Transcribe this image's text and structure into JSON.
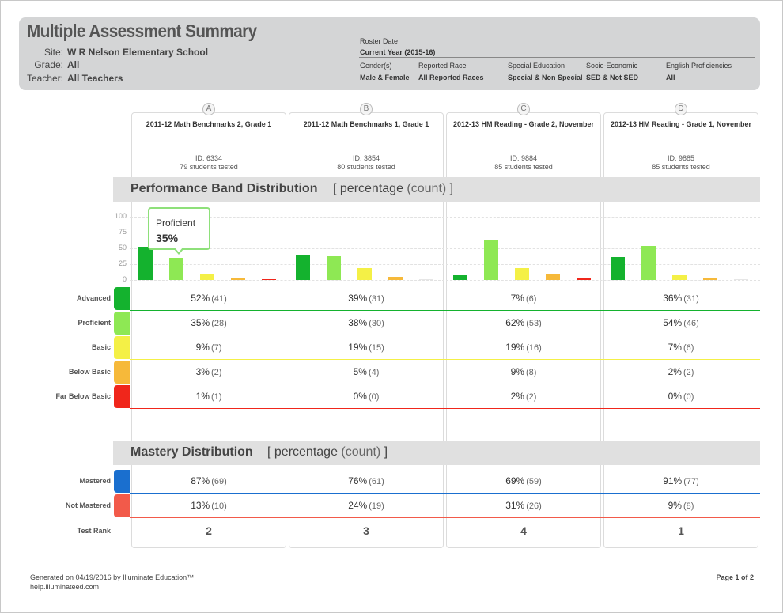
{
  "header": {
    "title": "Multiple Assessment Summary",
    "site_label": "Site:",
    "site_value": "W R Nelson Elementary School",
    "grade_label": "Grade:",
    "grade_value": "All",
    "teacher_label": "Teacher:",
    "teacher_value": "All Teachers",
    "roster_label": "Roster Date",
    "roster_value": "Current Year (2015-16)",
    "filters": [
      {
        "label": "Gender(s)",
        "value": "Male & Female"
      },
      {
        "label": "Reported Race",
        "value": "All Reported Races"
      },
      {
        "label": "Special Education",
        "value": "Special & Non Special"
      },
      {
        "label": "Socio-Economic",
        "value": "SED & Not SED"
      },
      {
        "label": "English Proficiencies",
        "value": "All"
      }
    ]
  },
  "assessments": [
    {
      "letter": "A",
      "title": "2011-12 Math Benchmarks 2, Grade 1",
      "id": "ID: 6334",
      "tested": "79 students tested"
    },
    {
      "letter": "B",
      "title": "2011-12 Math Benchmarks 1, Grade 1",
      "id": "ID: 3854",
      "tested": "80 students tested"
    },
    {
      "letter": "C",
      "title": "2012-13 HM Reading - Grade 2, November",
      "id": "ID: 9884",
      "tested": "85 students tested"
    },
    {
      "letter": "D",
      "title": "2012-13 HM Reading - Grade 1, November",
      "id": "ID: 9885",
      "tested": "85 students tested"
    }
  ],
  "performance": {
    "title": "Performance Band Distribution",
    "sub_open": "[",
    "sub_pct": "percentage",
    "sub_count": "(count)",
    "sub_close": "]",
    "bands": [
      {
        "label": "Advanced",
        "color": "#14b22e",
        "line": "#14b22e",
        "cells": [
          {
            "pct": "52%",
            "count": "(41)"
          },
          {
            "pct": "39%",
            "count": "(31)"
          },
          {
            "pct": "7%",
            "count": "(6)"
          },
          {
            "pct": "36%",
            "count": "(31)"
          }
        ]
      },
      {
        "label": "Proficient",
        "color": "#8ee854",
        "line": "#8ee854",
        "cells": [
          {
            "pct": "35%",
            "count": "(28)"
          },
          {
            "pct": "38%",
            "count": "(30)"
          },
          {
            "pct": "62%",
            "count": "(53)"
          },
          {
            "pct": "54%",
            "count": "(46)"
          }
        ]
      },
      {
        "label": "Basic",
        "color": "#f4f046",
        "line": "#f4f046",
        "cells": [
          {
            "pct": "9%",
            "count": "(7)"
          },
          {
            "pct": "19%",
            "count": "(15)"
          },
          {
            "pct": "19%",
            "count": "(16)"
          },
          {
            "pct": "7%",
            "count": "(6)"
          }
        ]
      },
      {
        "label": "Below Basic",
        "color": "#f6b93a",
        "line": "#f6b93a",
        "cells": [
          {
            "pct": "3%",
            "count": "(2)"
          },
          {
            "pct": "5%",
            "count": "(4)"
          },
          {
            "pct": "9%",
            "count": "(8)"
          },
          {
            "pct": "2%",
            "count": "(2)"
          }
        ]
      },
      {
        "label": "Far Below Basic",
        "color": "#f0261b",
        "line": "#f0261b",
        "cells": [
          {
            "pct": "1%",
            "count": "(1)"
          },
          {
            "pct": "0%",
            "count": "(0)"
          },
          {
            "pct": "2%",
            "count": "(2)"
          },
          {
            "pct": "0%",
            "count": "(0)"
          }
        ]
      }
    ]
  },
  "chart_data": {
    "type": "bar",
    "categories": [
      "A",
      "B",
      "C",
      "D"
    ],
    "ylim": [
      0,
      100
    ],
    "yticks": [
      0,
      25,
      50,
      75,
      100
    ],
    "grid": true,
    "series": [
      {
        "name": "Advanced",
        "color": "#14b22e",
        "values": [
          52,
          39,
          7,
          36
        ]
      },
      {
        "name": "Proficient",
        "color": "#8ee854",
        "values": [
          35,
          38,
          62,
          54
        ]
      },
      {
        "name": "Basic",
        "color": "#f4f046",
        "values": [
          9,
          19,
          19,
          7
        ]
      },
      {
        "name": "Below Basic",
        "color": "#f6b93a",
        "values": [
          3,
          5,
          9,
          2
        ]
      },
      {
        "name": "Far Below Basic",
        "color": "#f0261b",
        "values": [
          1,
          0,
          2,
          0
        ]
      }
    ],
    "tooltip": {
      "label": "Proficient",
      "value": "35%"
    }
  },
  "mastery": {
    "title": "Mastery Distribution",
    "sub_open": "[",
    "sub_pct": "percentage",
    "sub_count": "(count)",
    "sub_close": "]",
    "rows": [
      {
        "label": "Mastered",
        "color": "#1a6fcf",
        "cells": [
          {
            "pct": "87%",
            "count": "(69)"
          },
          {
            "pct": "76%",
            "count": "(61)"
          },
          {
            "pct": "69%",
            "count": "(59)"
          },
          {
            "pct": "91%",
            "count": "(77)"
          }
        ]
      },
      {
        "label": "Not Mastered",
        "color": "#f25a4a",
        "cells": [
          {
            "pct": "13%",
            "count": "(10)"
          },
          {
            "pct": "24%",
            "count": "(19)"
          },
          {
            "pct": "31%",
            "count": "(26)"
          },
          {
            "pct": "9%",
            "count": "(8)"
          }
        ]
      }
    ],
    "rank_label": "Test Rank",
    "ranks": [
      "2",
      "3",
      "4",
      "1"
    ]
  },
  "footer": {
    "generated": "Generated on 04/19/2016 by Illuminate Education™",
    "help": "help.illuminateed.com",
    "page": "Page 1 of 2"
  }
}
